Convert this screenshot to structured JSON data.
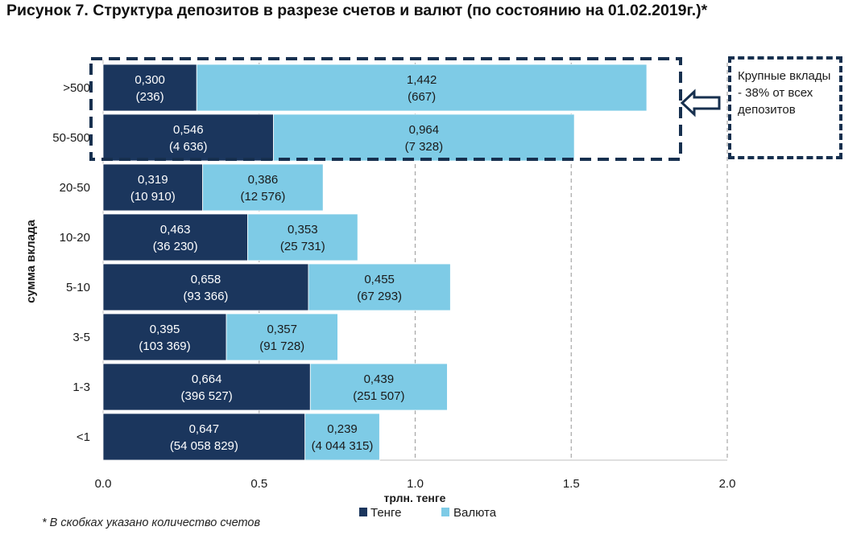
{
  "title": "Рисунок 7. Структура депозитов в разрезе счетов и валют (по состоянию на 01.02.2019г.)*",
  "annotation": "Крупные вклады - 38% от всех депозитов",
  "footnote": "* В скобках указано количество счетов",
  "colors": {
    "tenge": "#1b365d",
    "valuta": "#7ecbe6",
    "frame": "#17304f"
  },
  "chart_data": {
    "type": "bar",
    "orientation": "horizontal",
    "stacked": true,
    "categories": [
      ">500",
      "50-500",
      "20-50",
      "10-20",
      "5-10",
      "3-5",
      "1-3",
      "<1"
    ],
    "series": [
      {
        "name": "Тенге",
        "values": [
          0.3,
          0.546,
          0.319,
          0.463,
          0.658,
          0.395,
          0.664,
          0.647
        ],
        "labels": [
          "0,300",
          "0,546",
          "0,319",
          "0,463",
          "0,658",
          "0,395",
          "0,664",
          "0,647"
        ],
        "accounts": [
          "(236)",
          "(4 636)",
          "(10 910)",
          "(36 230)",
          "(93 366)",
          "(103 369)",
          "(396 527)",
          "(54 058 829)"
        ]
      },
      {
        "name": "Валюта",
        "values": [
          1.442,
          0.964,
          0.386,
          0.353,
          0.455,
          0.357,
          0.439,
          0.239
        ],
        "labels": [
          "1,442",
          "0,964",
          "0,386",
          "0,353",
          "0,455",
          "0,357",
          "0,439",
          "0,239"
        ],
        "accounts": [
          "(667)",
          "(7 328)",
          "(12 576)",
          "(25 731)",
          "(67 293)",
          "(91 728)",
          "(251 507)",
          "(4 044 315)"
        ]
      }
    ],
    "xlabel": "трлн. тенге",
    "ylabel": "сумма вклада",
    "xlim": [
      0,
      2.0
    ],
    "xticks": [
      "0.0",
      "0.5",
      "1.0",
      "1.5",
      "2.0"
    ],
    "xtick_values": [
      0,
      0.5,
      1.0,
      1.5,
      2.0
    ],
    "grid": "vertical dashed",
    "legend_position": "bottom"
  }
}
